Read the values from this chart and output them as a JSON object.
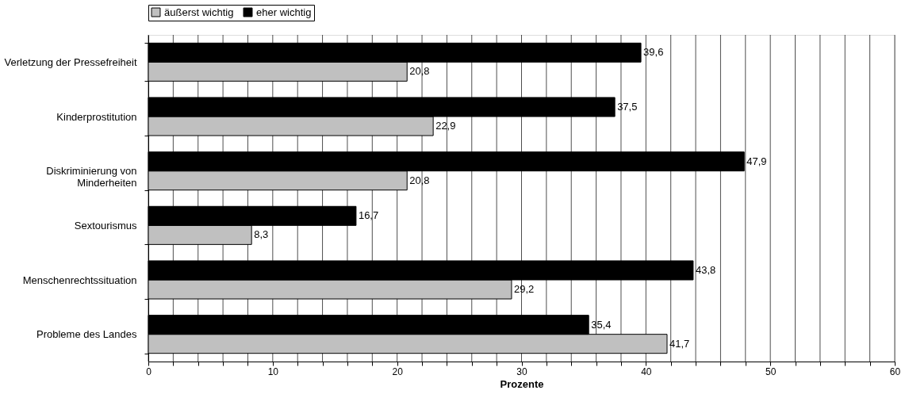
{
  "chart_data": {
    "type": "bar",
    "orientation": "horizontal",
    "xlabel": "Prozente",
    "categories": [
      "Verletzung der Pressefreiheit",
      "Kinderprostitution",
      "Diskriminierung von Minderheiten",
      "Sextourismus",
      "Menschenrechtssituation",
      "Probleme des Landes"
    ],
    "series": [
      {
        "name": "äußerst wichtig",
        "color": "#c0c0c0",
        "values": [
          20.8,
          22.9,
          20.8,
          8.3,
          29.2,
          41.7
        ],
        "value_labels": [
          "20,8",
          "22,9",
          "20,8",
          "8,3",
          "29,2",
          "41,7"
        ]
      },
      {
        "name": "eher wichtig",
        "color": "#000000",
        "values": [
          39.6,
          37.5,
          47.9,
          16.7,
          43.8,
          35.4
        ],
        "value_labels": [
          "39,6",
          "37,5",
          "47,9",
          "16,7",
          "43,8",
          "35,4"
        ]
      }
    ],
    "xlim": [
      0,
      60
    ],
    "xticks": [
      0,
      {
        "value": 2,
        "label": null
      },
      {
        "value": 4,
        "label": null
      },
      {
        "value": 6,
        "label": null
      },
      {
        "value": 8,
        "label": null
      },
      10,
      {
        "value": 12,
        "label": null
      },
      {
        "value": 14,
        "label": null
      },
      {
        "value": 16,
        "label": null
      },
      {
        "value": 18,
        "label": null
      },
      20,
      {
        "value": 22,
        "label": null
      },
      {
        "value": 24,
        "label": null
      },
      {
        "value": 26,
        "label": null
      },
      {
        "value": 28,
        "label": null
      },
      30,
      {
        "value": 32,
        "label": null
      },
      {
        "value": 34,
        "label": null
      },
      {
        "value": 36,
        "label": null
      },
      {
        "value": 38,
        "label": null
      },
      40,
      {
        "value": 42,
        "label": null
      },
      {
        "value": 44,
        "label": null
      },
      {
        "value": 46,
        "label": null
      },
      {
        "value": 48,
        "label": null
      },
      50,
      {
        "value": 52,
        "label": null
      },
      {
        "value": 54,
        "label": null
      },
      {
        "value": 56,
        "label": null
      },
      {
        "value": 58,
        "label": null
      },
      60
    ],
    "grid": "x",
    "legend": "top"
  }
}
